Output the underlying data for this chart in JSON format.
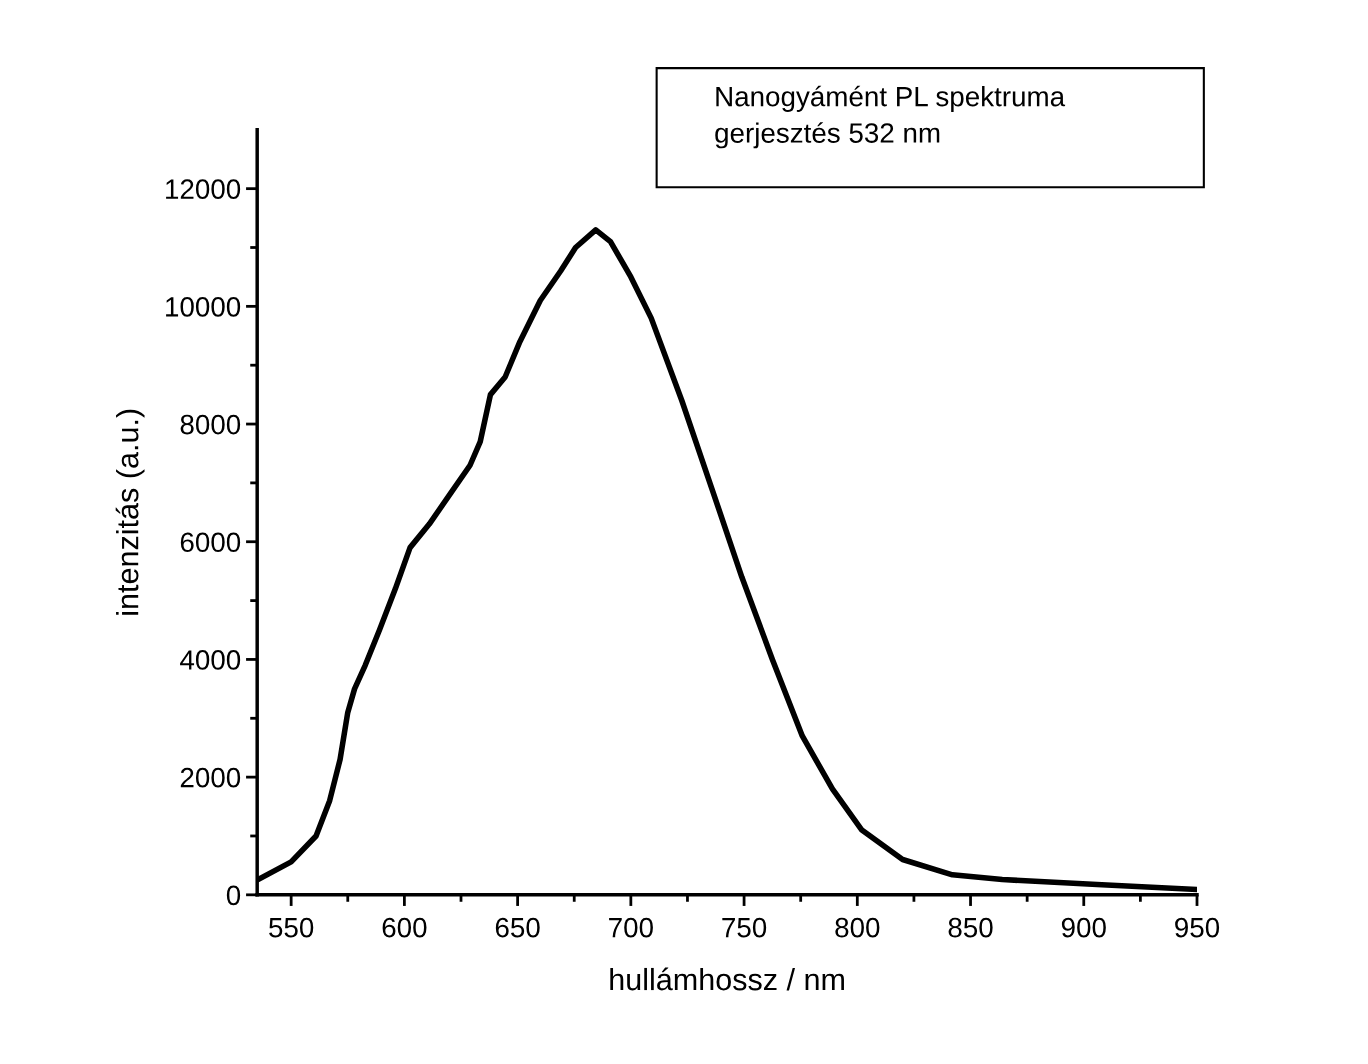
{
  "chart_data": {
    "type": "line",
    "xlabel": "hullámhossz / nm",
    "ylabel": "intenzitás (a.u.)",
    "annotations": [
      "Nanogyámént PL spektruma\ngerjesztés 532 nm"
    ],
    "x": [
      535,
      550,
      561,
      567,
      571.6,
      575,
      578,
      582.7,
      589,
      596,
      602.5,
      611,
      620,
      629,
      633.5,
      638,
      644.5,
      651,
      660,
      669,
      675.6,
      684.5,
      691,
      700,
      709,
      722.5,
      735.8,
      749,
      762.5,
      775.7,
      789,
      802,
      820,
      842,
      864,
      908,
      950
    ],
    "series": [
      {
        "color": "#000000",
        "values": [
          250,
          560,
          1000,
          1600,
          2300,
          3100,
          3500,
          3900,
          4500,
          5200,
          5900,
          6300,
          6800,
          7300,
          7700,
          8500,
          8800,
          9400,
          10100,
          10600,
          11000,
          11300,
          11100,
          10500,
          9800,
          8400,
          6900,
          5400,
          4000,
          2700,
          1800,
          1100,
          600,
          340,
          260,
          170,
          90
        ]
      }
    ],
    "xlim": [
      535,
      950
    ],
    "ylim": [
      0,
      13000
    ],
    "xticks": [
      550,
      {
        "value": 575,
        "label": null
      },
      600,
      {
        "value": 625,
        "label": null
      },
      650,
      {
        "value": 675,
        "label": null
      },
      700,
      {
        "value": 725,
        "label": null
      },
      750,
      {
        "value": 775,
        "label": null
      },
      800,
      {
        "value": 825,
        "label": null
      },
      850,
      {
        "value": 875,
        "label": null
      },
      900,
      {
        "value": 925,
        "label": null
      },
      950
    ],
    "yticks": [
      0,
      {
        "value": 1000,
        "label": null
      },
      2000,
      {
        "value": 3000,
        "label": null
      },
      4000,
      {
        "value": 5000,
        "label": null
      },
      6000,
      {
        "value": 7000,
        "label": null
      },
      8000,
      {
        "value": 9000,
        "label": null
      },
      10000,
      {
        "value": 11000,
        "label": null
      },
      12000
    ],
    "grid": false,
    "legend": false,
    "marker": "none",
    "line_style": "solid"
  }
}
